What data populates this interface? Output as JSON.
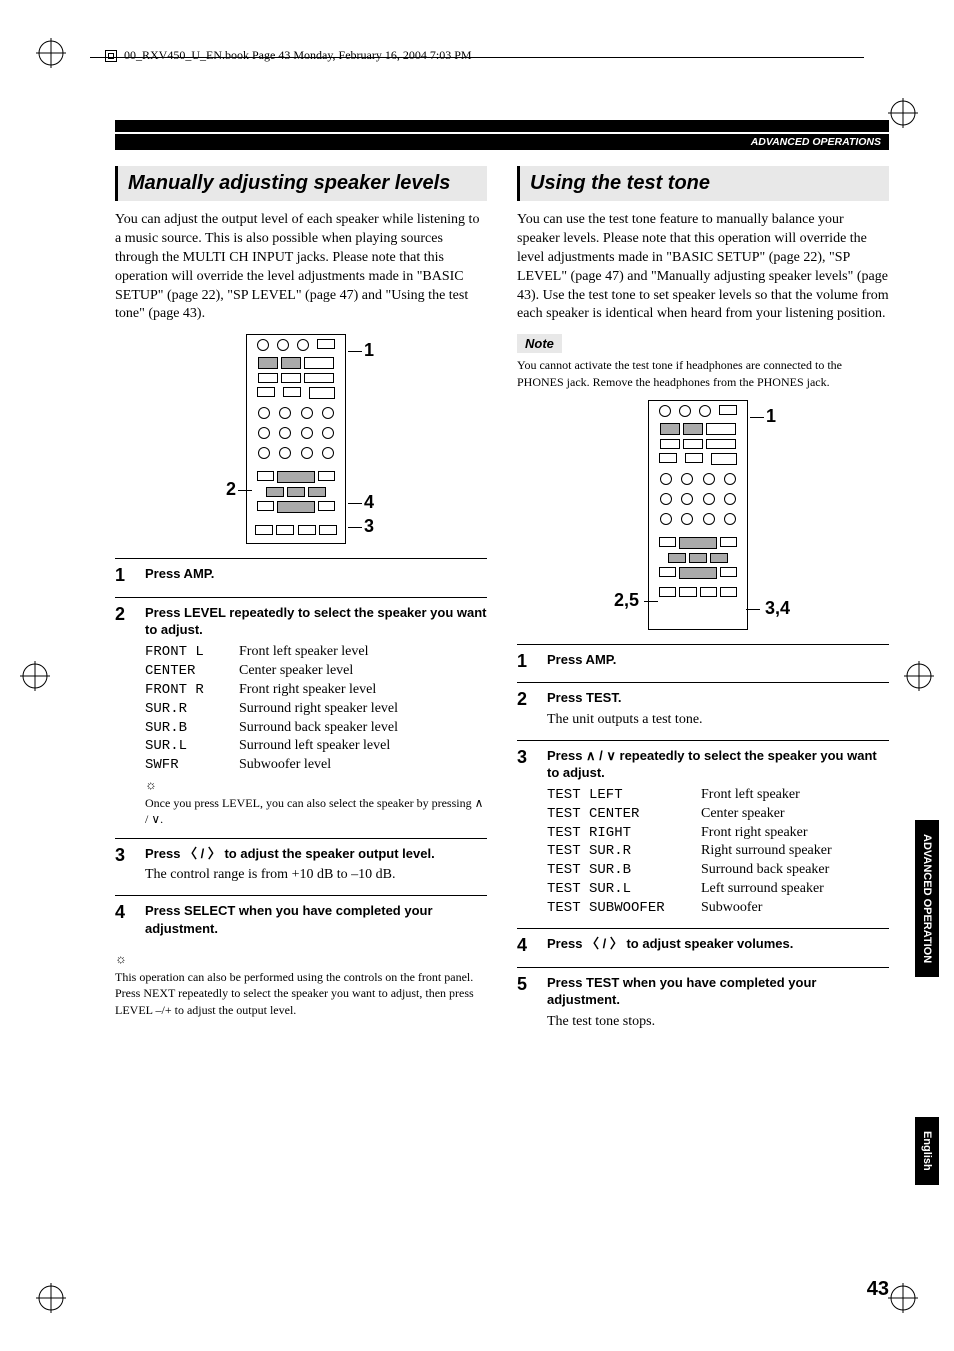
{
  "header": {
    "book_info": "00_RXV450_U_EN.book  Page 43  Monday, February 16, 2004  7:03 PM"
  },
  "section_header": "ADVANCED OPERATIONS",
  "left": {
    "title": "Manually adjusting speaker levels",
    "intro": "You can adjust the output level of each speaker while listening to a music source. This is also possible when playing sources through the MULTI CH INPUT jacks. Please note that this operation will override the level adjustments made in \"BASIC SETUP\" (page 22), \"SP LEVEL\" (page 47) and \"Using the test tone\" (page 43).",
    "callouts": {
      "c1": "1",
      "c2": "2",
      "c3": "3",
      "c4": "4"
    },
    "steps": {
      "s1_title": "Press AMP.",
      "s2_title": "Press LEVEL repeatedly to select the speaker you want to adjust.",
      "speaker_rows": [
        {
          "code": "FRONT L",
          "desc": "Front left speaker level"
        },
        {
          "code": "CENTER",
          "desc": "Center speaker level"
        },
        {
          "code": "FRONT R",
          "desc": "Front right speaker level"
        },
        {
          "code": "SUR.R",
          "desc": "Surround right speaker level"
        },
        {
          "code": "SUR.B",
          "desc": "Surround back speaker level"
        },
        {
          "code": "SUR.L",
          "desc": "Surround left speaker level"
        },
        {
          "code": "SWFR",
          "desc": "Subwoofer level"
        }
      ],
      "s2_tip": "Once you press LEVEL, you can also select the speaker by pressing ∧ / ∨.",
      "s3_title": "Press 〈 / 〉 to adjust the speaker output level.",
      "s3_text": "The control range is from +10 dB to –10 dB.",
      "s4_title": "Press SELECT when you have completed your adjustment."
    },
    "footer_tip": "This operation can also be performed using the controls on the front panel. Press NEXT repeatedly to select the speaker you want to adjust, then press LEVEL –/+ to adjust the output level."
  },
  "right": {
    "title": "Using the test tone",
    "intro": "You can use the test tone feature to manually balance your speaker levels. Please note that this operation will override the level adjustments made in \"BASIC SETUP\" (page 22), \"SP LEVEL\" (page 47) and \"Manually adjusting speaker levels\" (page 43). Use the test tone to set speaker levels so that the volume from each speaker is identical when heard from your listening position.",
    "note_label": "Note",
    "note_text": "You cannot activate the test tone if headphones are connected to the PHONES jack. Remove the headphones from the PHONES jack.",
    "callouts": {
      "c1": "1",
      "c25": "2,5",
      "c34": "3,4"
    },
    "steps": {
      "s1_title": "Press AMP.",
      "s2_title": "Press TEST.",
      "s2_text": "The unit outputs a test tone.",
      "s3_title": "Press ∧ / ∨ repeatedly to select the speaker you want to adjust.",
      "speaker_rows": [
        {
          "code": "TEST LEFT",
          "desc": "Front left speaker"
        },
        {
          "code": "TEST CENTER",
          "desc": "Center speaker"
        },
        {
          "code": "TEST RIGHT",
          "desc": "Front right speaker"
        },
        {
          "code": "TEST SUR.R",
          "desc": "Right surround speaker"
        },
        {
          "code": "TEST SUR.B",
          "desc": "Surround back speaker"
        },
        {
          "code": "TEST SUR.L",
          "desc": "Left surround speaker"
        },
        {
          "code": "TEST SUBWOOFER",
          "desc": "Subwoofer"
        }
      ],
      "s4_title": "Press 〈 / 〉 to adjust speaker volumes.",
      "s5_title": "Press TEST when you have completed your adjustment.",
      "s5_text": "The test tone stops."
    }
  },
  "side_tabs": {
    "tab1": "ADVANCED OPERATION",
    "tab2": "English"
  },
  "page_number": "43"
}
